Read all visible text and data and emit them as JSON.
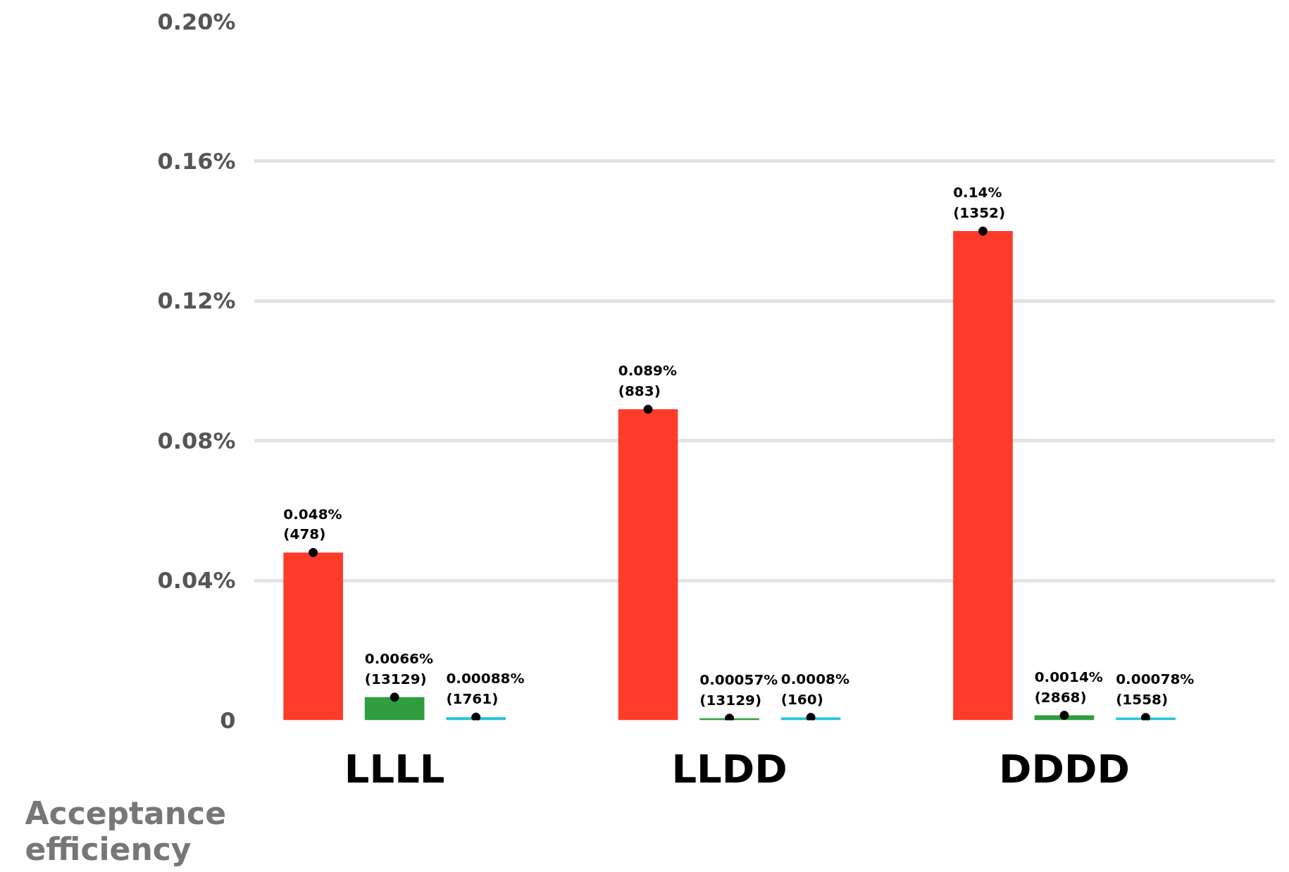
{
  "chart_data": {
    "type": "bar",
    "ylabel": "Acceptance efficiency",
    "categories": [
      "LLLL",
      "LLDD",
      "DDDD"
    ],
    "series": [
      {
        "color": "#ff3b2a",
        "values": [
          0.048,
          0.089,
          0.14
        ],
        "value_labels": [
          "0.048%\n(478)",
          "0.089%\n(883)",
          "0.14%\n(1352)"
        ]
      },
      {
        "color": "#2e9e3e",
        "values": [
          0.0066,
          0.00057,
          0.0014
        ],
        "value_labels": [
          "0.0066%\n(13129)",
          "0.00057%\n(13129)",
          "0.0014%\n(2868)"
        ]
      },
      {
        "color": "#22c5d8",
        "values": [
          0.00088,
          0.0008,
          0.00078
        ],
        "value_labels": [
          "0.00088%\n(1761)",
          "0.0008%\n(160)",
          "0.00078%\n(1558)"
        ]
      },
      {
        "type": "scatter",
        "color": "#000000",
        "values": [
          0.048,
          0.089,
          0.14
        ]
      },
      {
        "type": "scatter",
        "color": "#000000",
        "values": [
          0.0066,
          0.00057,
          0.0014
        ]
      },
      {
        "type": "scatter",
        "color": "#000000",
        "values": [
          0.00088,
          0.0008,
          0.00078
        ]
      }
    ],
    "ylim": [
      0,
      0.2
    ],
    "yticks": [
      {
        "value": 0,
        "label": "0"
      },
      {
        "value": 0.04,
        "label": "0.04%"
      },
      {
        "value": 0.08,
        "label": "0.08%"
      },
      {
        "value": 0.12,
        "label": "0.12%"
      },
      {
        "value": 0.16,
        "label": "0.16%"
      },
      {
        "value": 0.2,
        "label": "0.20%"
      }
    ],
    "grid": "y",
    "marker": "circle"
  }
}
